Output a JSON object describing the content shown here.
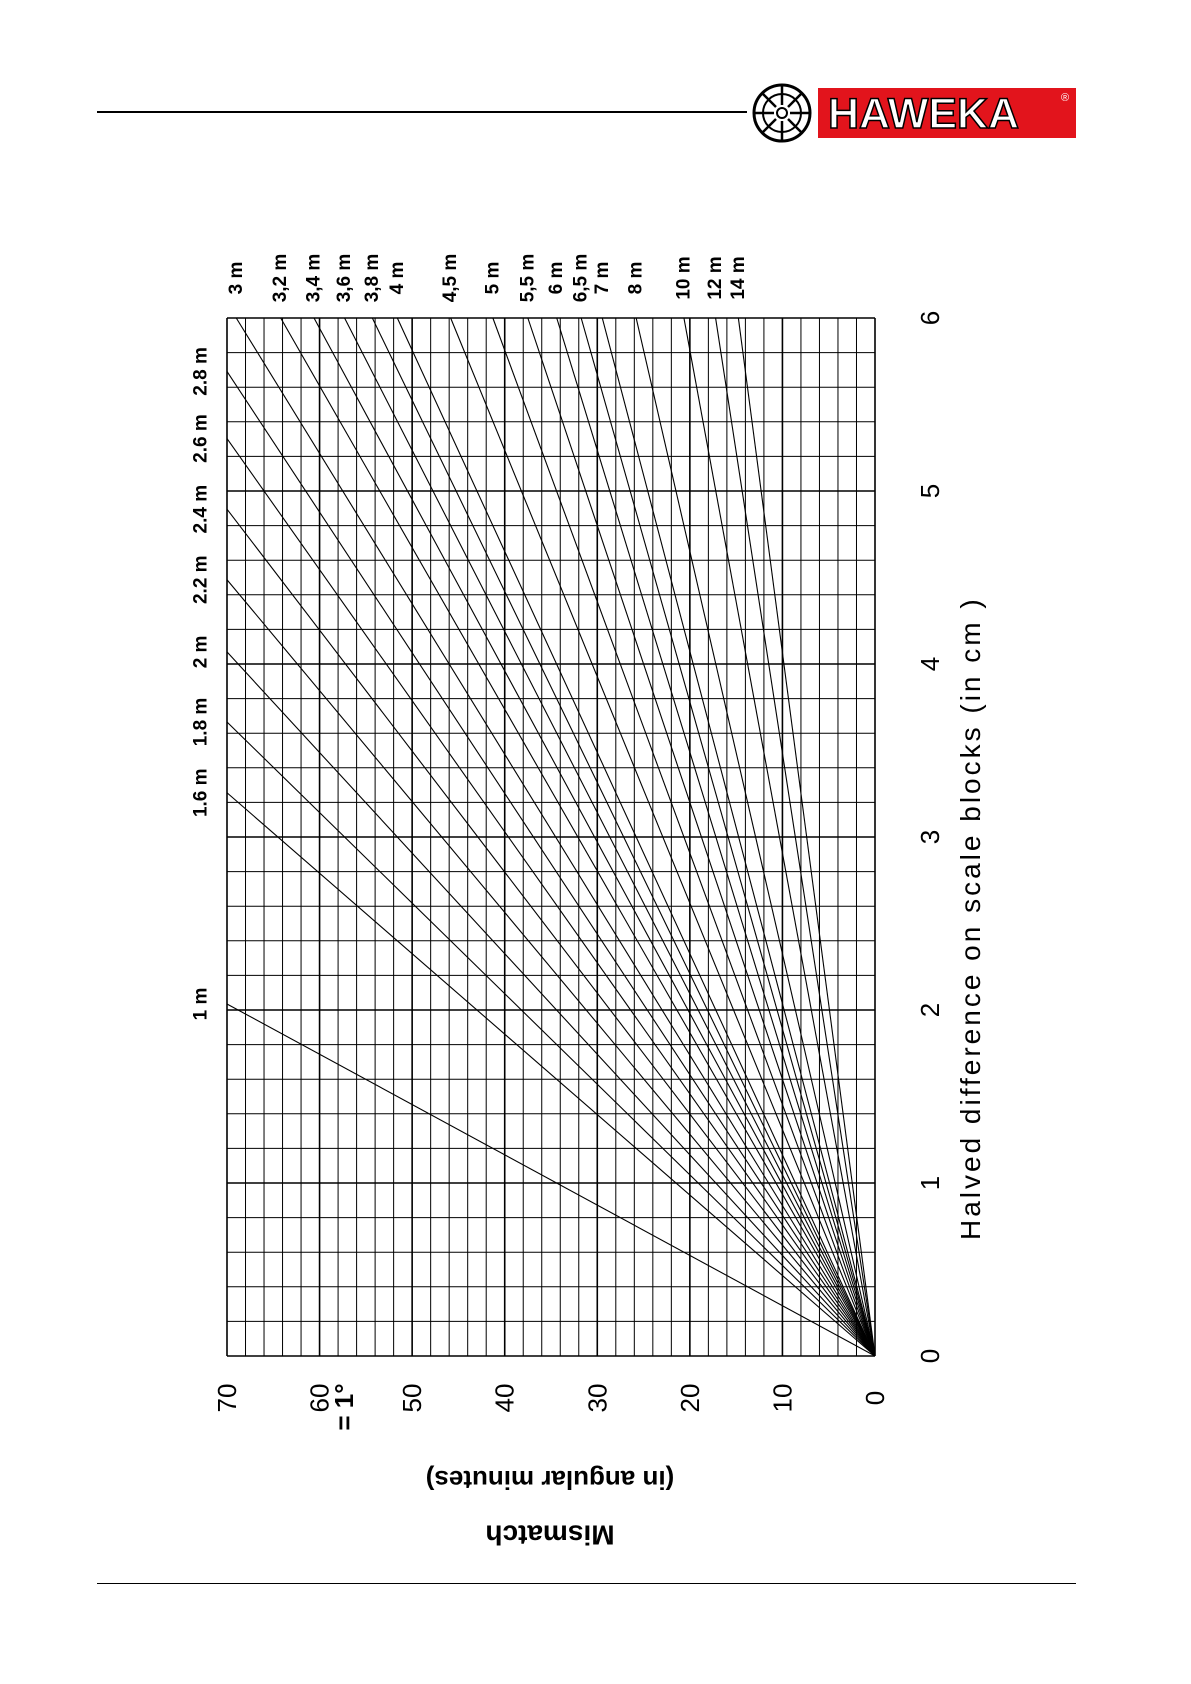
{
  "brand": {
    "name": "HAWEKA",
    "registered": "®",
    "red": "#e2141c"
  },
  "chart_data": {
    "type": "line",
    "xlabel": "Halved difference on scale blocks (in cm )",
    "ylabel_line1": "Mismatch",
    "ylabel_line2": "(in angular minutes)",
    "xlim": [
      0,
      6
    ],
    "ylim": [
      0,
      70
    ],
    "x_ticks": [
      "0",
      "1",
      "2",
      "3",
      "4",
      "5",
      "6"
    ],
    "y_ticks": [
      "0",
      "10",
      "20",
      "30",
      "40",
      "50",
      "60",
      "70"
    ],
    "annotation": "= 1°",
    "grid": true,
    "series": [
      {
        "label": "1 m",
        "slope": 34.4
      },
      {
        "label": "1.6 m",
        "slope": 21.5
      },
      {
        "label": "1.8 m",
        "slope": 19.1
      },
      {
        "label": "2 m",
        "slope": 17.2
      },
      {
        "label": "2.2 m",
        "slope": 15.6
      },
      {
        "label": "2.4 m",
        "slope": 14.3
      },
      {
        "label": "2.6 m",
        "slope": 13.2
      },
      {
        "label": "2.8 m",
        "slope": 12.3
      },
      {
        "label": "3 m",
        "slope": 11.5
      },
      {
        "label": "3,2 m",
        "slope": 10.7
      },
      {
        "label": "3,4 m",
        "slope": 10.1
      },
      {
        "label": "3,6 m",
        "slope": 9.55
      },
      {
        "label": "3,8 m",
        "slope": 9.05
      },
      {
        "label": "4 m",
        "slope": 8.6
      },
      {
        "label": "4,5 m",
        "slope": 7.64
      },
      {
        "label": "5 m",
        "slope": 6.88
      },
      {
        "label": "5,5 m",
        "slope": 6.25
      },
      {
        "label": "6 m",
        "slope": 5.73
      },
      {
        "label": "6,5 m",
        "slope": 5.29
      },
      {
        "label": "7 m",
        "slope": 4.91
      },
      {
        "label": "8 m",
        "slope": 4.3
      },
      {
        "label": "10 m",
        "slope": 3.44
      },
      {
        "label": "12 m",
        "slope": 2.87
      },
      {
        "label": "14 m",
        "slope": 2.46
      }
    ]
  }
}
